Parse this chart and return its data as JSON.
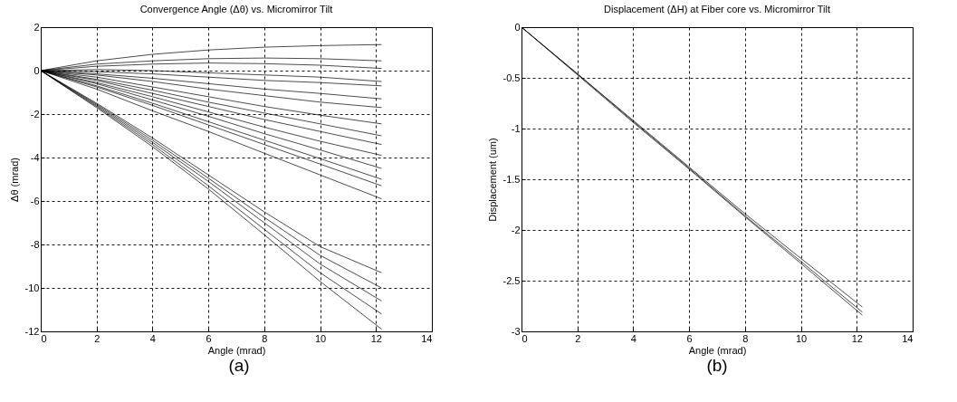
{
  "chart_data": [
    {
      "type": "line",
      "title": "Convergence Angle (Δθ) vs. Micromirror Tilt",
      "xlabel": "Angle (mrad)",
      "ylabel": "Δθ (mrad)",
      "annotations": [
        "(a)"
      ],
      "x": [
        0,
        2,
        4,
        6,
        8,
        10,
        12.2
      ],
      "xlim": [
        0,
        14
      ],
      "xticks": [
        0,
        2,
        4,
        6,
        8,
        10,
        12,
        14
      ],
      "ylim": [
        -12,
        2
      ],
      "yticks": [
        -12,
        -10,
        -8,
        -6,
        -4,
        -2,
        0,
        2
      ],
      "grid": true,
      "legend": false,
      "line_style": "solid",
      "series": [
        {
          "color": "#000000",
          "values": [
            0,
            0.45,
            0.75,
            0.95,
            1.08,
            1.15,
            1.2
          ]
        },
        {
          "color": "#000000",
          "values": [
            0,
            0.3,
            0.45,
            0.55,
            0.58,
            0.55,
            0.45
          ]
        },
        {
          "color": "#000000",
          "values": [
            0,
            0.2,
            0.3,
            0.35,
            0.32,
            0.25,
            0.1
          ]
        },
        {
          "color": "#000000",
          "values": [
            0,
            0.05,
            0,
            -0.1,
            -0.2,
            -0.3,
            -0.5
          ]
        },
        {
          "color": "#000000",
          "values": [
            0,
            -0.05,
            -0.15,
            -0.3,
            -0.45,
            -0.55,
            -0.7
          ]
        },
        {
          "color": "#000000",
          "values": [
            0,
            -0.15,
            -0.35,
            -0.6,
            -0.85,
            -1.05,
            -1.3
          ]
        },
        {
          "color": "#000000",
          "values": [
            0,
            -0.2,
            -0.5,
            -0.85,
            -1.15,
            -1.45,
            -1.7
          ]
        },
        {
          "color": "#000000",
          "values": [
            0,
            -0.3,
            -0.75,
            -1.2,
            -1.65,
            -2.05,
            -2.45
          ]
        },
        {
          "color": "#000000",
          "values": [
            0,
            -0.4,
            -0.9,
            -1.45,
            -1.95,
            -2.45,
            -3.0
          ]
        },
        {
          "color": "#000000",
          "values": [
            0,
            -0.45,
            -1.05,
            -1.65,
            -2.25,
            -2.8,
            -3.4
          ]
        },
        {
          "color": "#000000",
          "values": [
            0,
            -0.55,
            -1.2,
            -1.9,
            -2.6,
            -3.25,
            -3.9
          ]
        },
        {
          "color": "#000000",
          "values": [
            0,
            -0.6,
            -1.35,
            -2.1,
            -2.9,
            -3.65,
            -4.5
          ]
        },
        {
          "color": "#000000",
          "values": [
            0,
            -0.7,
            -1.5,
            -2.35,
            -3.2,
            -4.05,
            -5.0
          ]
        },
        {
          "color": "#000000",
          "values": [
            0,
            -0.75,
            -1.6,
            -2.5,
            -3.4,
            -4.3,
            -5.3
          ]
        },
        {
          "color": "#000000",
          "values": [
            0,
            -0.85,
            -1.85,
            -2.8,
            -3.8,
            -4.8,
            -5.9
          ]
        },
        {
          "color": "#000000",
          "values": [
            0,
            -1.5,
            -3.1,
            -4.8,
            -6.5,
            -8.1,
            -9.3
          ]
        },
        {
          "color": "#000000",
          "values": [
            0,
            -1.55,
            -3.2,
            -4.95,
            -6.75,
            -8.5,
            -10.0
          ]
        },
        {
          "color": "#000000",
          "values": [
            0,
            -1.6,
            -3.3,
            -5.1,
            -7.0,
            -8.9,
            -10.6
          ]
        },
        {
          "color": "#000000",
          "values": [
            0,
            -1.65,
            -3.4,
            -5.3,
            -7.3,
            -9.3,
            -11.2
          ]
        },
        {
          "color": "#000000",
          "values": [
            0,
            -1.7,
            -3.5,
            -5.45,
            -7.55,
            -9.7,
            -11.9
          ]
        }
      ]
    },
    {
      "type": "line",
      "title": "Displacement (ΔH) at Fiber core vs. Micromirror Tilt",
      "xlabel": "Angle (mrad)",
      "ylabel": "Displacement (um)",
      "annotations": [
        "(b)"
      ],
      "x": [
        0,
        2,
        4,
        6,
        8,
        10,
        12.2
      ],
      "xlim": [
        0,
        14
      ],
      "xticks": [
        0,
        2,
        4,
        6,
        8,
        10,
        12,
        14
      ],
      "ylim": [
        -3,
        0
      ],
      "yticks": [
        -3,
        -2.5,
        -2,
        -1.5,
        -1,
        -0.5,
        0
      ],
      "grid": true,
      "legend": false,
      "line_style": "solid",
      "series": [
        {
          "color": "#000000",
          "values": [
            0,
            -0.46,
            -0.92,
            -1.38,
            -1.84,
            -2.28,
            -2.76
          ]
        },
        {
          "color": "#000000",
          "values": [
            0,
            -0.46,
            -0.93,
            -1.39,
            -1.86,
            -2.31,
            -2.81
          ]
        },
        {
          "color": "#000000",
          "values": [
            0,
            -0.47,
            -0.94,
            -1.4,
            -1.87,
            -2.33,
            -2.84
          ]
        }
      ]
    }
  ]
}
